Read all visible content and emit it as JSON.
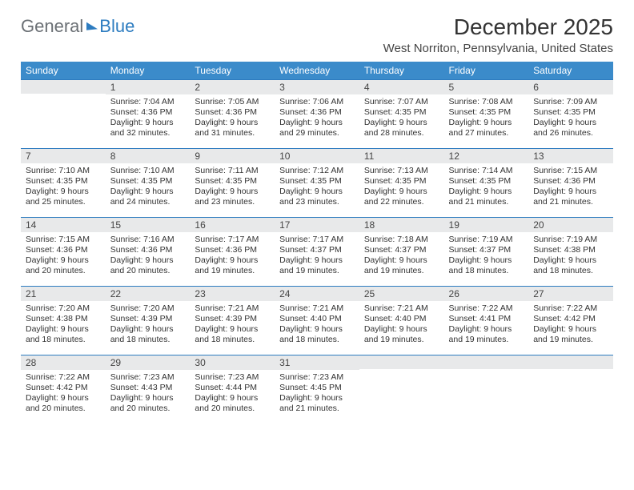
{
  "brand": {
    "part1": "General",
    "part2": "Blue"
  },
  "title": "December 2025",
  "location": "West Norriton, Pennsylvania, United States",
  "colors": {
    "header_bg": "#3b8bca",
    "header_text": "#ffffff",
    "daybar_bg": "#e8e9ea",
    "daybar_border": "#2d7cc0",
    "body_text": "#333333",
    "brand_gray": "#6b7075",
    "brand_blue": "#2d7cc0"
  },
  "days_of_week": [
    "Sunday",
    "Monday",
    "Tuesday",
    "Wednesday",
    "Thursday",
    "Friday",
    "Saturday"
  ],
  "weeks": [
    [
      {
        "n": "",
        "sunrise": "",
        "sunset": "",
        "daylight": ""
      },
      {
        "n": "1",
        "sunrise": "Sunrise: 7:04 AM",
        "sunset": "Sunset: 4:36 PM",
        "daylight": "Daylight: 9 hours and 32 minutes."
      },
      {
        "n": "2",
        "sunrise": "Sunrise: 7:05 AM",
        "sunset": "Sunset: 4:36 PM",
        "daylight": "Daylight: 9 hours and 31 minutes."
      },
      {
        "n": "3",
        "sunrise": "Sunrise: 7:06 AM",
        "sunset": "Sunset: 4:36 PM",
        "daylight": "Daylight: 9 hours and 29 minutes."
      },
      {
        "n": "4",
        "sunrise": "Sunrise: 7:07 AM",
        "sunset": "Sunset: 4:35 PM",
        "daylight": "Daylight: 9 hours and 28 minutes."
      },
      {
        "n": "5",
        "sunrise": "Sunrise: 7:08 AM",
        "sunset": "Sunset: 4:35 PM",
        "daylight": "Daylight: 9 hours and 27 minutes."
      },
      {
        "n": "6",
        "sunrise": "Sunrise: 7:09 AM",
        "sunset": "Sunset: 4:35 PM",
        "daylight": "Daylight: 9 hours and 26 minutes."
      }
    ],
    [
      {
        "n": "7",
        "sunrise": "Sunrise: 7:10 AM",
        "sunset": "Sunset: 4:35 PM",
        "daylight": "Daylight: 9 hours and 25 minutes."
      },
      {
        "n": "8",
        "sunrise": "Sunrise: 7:10 AM",
        "sunset": "Sunset: 4:35 PM",
        "daylight": "Daylight: 9 hours and 24 minutes."
      },
      {
        "n": "9",
        "sunrise": "Sunrise: 7:11 AM",
        "sunset": "Sunset: 4:35 PM",
        "daylight": "Daylight: 9 hours and 23 minutes."
      },
      {
        "n": "10",
        "sunrise": "Sunrise: 7:12 AM",
        "sunset": "Sunset: 4:35 PM",
        "daylight": "Daylight: 9 hours and 23 minutes."
      },
      {
        "n": "11",
        "sunrise": "Sunrise: 7:13 AM",
        "sunset": "Sunset: 4:35 PM",
        "daylight": "Daylight: 9 hours and 22 minutes."
      },
      {
        "n": "12",
        "sunrise": "Sunrise: 7:14 AM",
        "sunset": "Sunset: 4:35 PM",
        "daylight": "Daylight: 9 hours and 21 minutes."
      },
      {
        "n": "13",
        "sunrise": "Sunrise: 7:15 AM",
        "sunset": "Sunset: 4:36 PM",
        "daylight": "Daylight: 9 hours and 21 minutes."
      }
    ],
    [
      {
        "n": "14",
        "sunrise": "Sunrise: 7:15 AM",
        "sunset": "Sunset: 4:36 PM",
        "daylight": "Daylight: 9 hours and 20 minutes."
      },
      {
        "n": "15",
        "sunrise": "Sunrise: 7:16 AM",
        "sunset": "Sunset: 4:36 PM",
        "daylight": "Daylight: 9 hours and 20 minutes."
      },
      {
        "n": "16",
        "sunrise": "Sunrise: 7:17 AM",
        "sunset": "Sunset: 4:36 PM",
        "daylight": "Daylight: 9 hours and 19 minutes."
      },
      {
        "n": "17",
        "sunrise": "Sunrise: 7:17 AM",
        "sunset": "Sunset: 4:37 PM",
        "daylight": "Daylight: 9 hours and 19 minutes."
      },
      {
        "n": "18",
        "sunrise": "Sunrise: 7:18 AM",
        "sunset": "Sunset: 4:37 PM",
        "daylight": "Daylight: 9 hours and 19 minutes."
      },
      {
        "n": "19",
        "sunrise": "Sunrise: 7:19 AM",
        "sunset": "Sunset: 4:37 PM",
        "daylight": "Daylight: 9 hours and 18 minutes."
      },
      {
        "n": "20",
        "sunrise": "Sunrise: 7:19 AM",
        "sunset": "Sunset: 4:38 PM",
        "daylight": "Daylight: 9 hours and 18 minutes."
      }
    ],
    [
      {
        "n": "21",
        "sunrise": "Sunrise: 7:20 AM",
        "sunset": "Sunset: 4:38 PM",
        "daylight": "Daylight: 9 hours and 18 minutes."
      },
      {
        "n": "22",
        "sunrise": "Sunrise: 7:20 AM",
        "sunset": "Sunset: 4:39 PM",
        "daylight": "Daylight: 9 hours and 18 minutes."
      },
      {
        "n": "23",
        "sunrise": "Sunrise: 7:21 AM",
        "sunset": "Sunset: 4:39 PM",
        "daylight": "Daylight: 9 hours and 18 minutes."
      },
      {
        "n": "24",
        "sunrise": "Sunrise: 7:21 AM",
        "sunset": "Sunset: 4:40 PM",
        "daylight": "Daylight: 9 hours and 18 minutes."
      },
      {
        "n": "25",
        "sunrise": "Sunrise: 7:21 AM",
        "sunset": "Sunset: 4:40 PM",
        "daylight": "Daylight: 9 hours and 19 minutes."
      },
      {
        "n": "26",
        "sunrise": "Sunrise: 7:22 AM",
        "sunset": "Sunset: 4:41 PM",
        "daylight": "Daylight: 9 hours and 19 minutes."
      },
      {
        "n": "27",
        "sunrise": "Sunrise: 7:22 AM",
        "sunset": "Sunset: 4:42 PM",
        "daylight": "Daylight: 9 hours and 19 minutes."
      }
    ],
    [
      {
        "n": "28",
        "sunrise": "Sunrise: 7:22 AM",
        "sunset": "Sunset: 4:42 PM",
        "daylight": "Daylight: 9 hours and 20 minutes."
      },
      {
        "n": "29",
        "sunrise": "Sunrise: 7:23 AM",
        "sunset": "Sunset: 4:43 PM",
        "daylight": "Daylight: 9 hours and 20 minutes."
      },
      {
        "n": "30",
        "sunrise": "Sunrise: 7:23 AM",
        "sunset": "Sunset: 4:44 PM",
        "daylight": "Daylight: 9 hours and 20 minutes."
      },
      {
        "n": "31",
        "sunrise": "Sunrise: 7:23 AM",
        "sunset": "Sunset: 4:45 PM",
        "daylight": "Daylight: 9 hours and 21 minutes."
      },
      {
        "n": "",
        "sunrise": "",
        "sunset": "",
        "daylight": ""
      },
      {
        "n": "",
        "sunrise": "",
        "sunset": "",
        "daylight": ""
      },
      {
        "n": "",
        "sunrise": "",
        "sunset": "",
        "daylight": ""
      }
    ]
  ]
}
